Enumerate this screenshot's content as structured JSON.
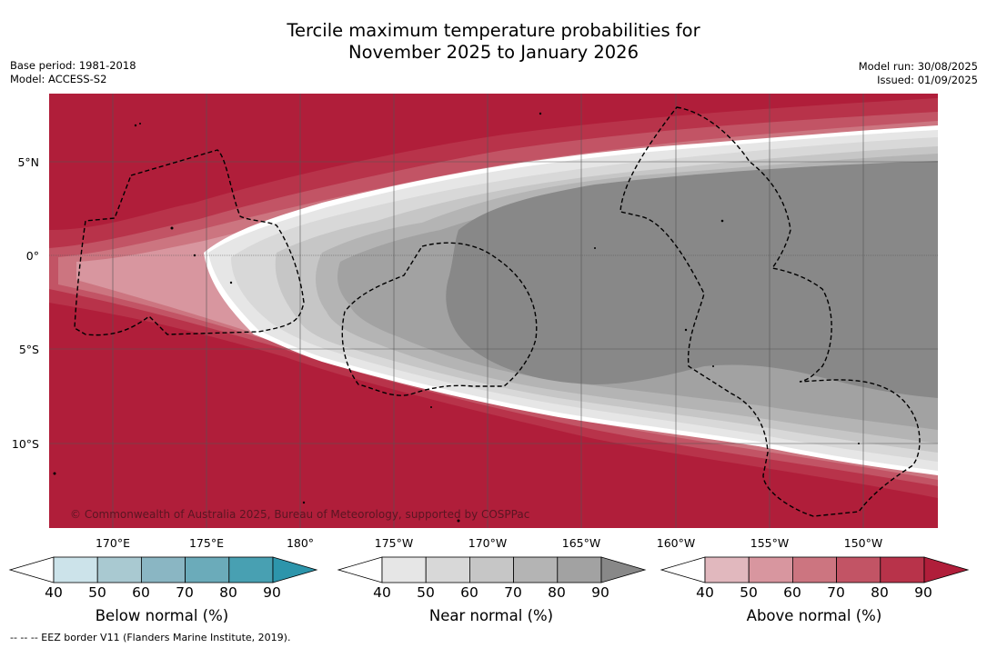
{
  "title_line1": "Tercile maximum temperature probabilities for",
  "title_line2": "November 2025 to January 2026",
  "meta_left": {
    "base_period": "Base period: 1981-2018",
    "model": "Model: ACCESS-S2"
  },
  "meta_right": {
    "model_run": "Model run: 30/08/2025",
    "issued": "Issued: 01/09/2025"
  },
  "latitudes": [
    "5°N",
    "0°",
    "5°S",
    "10°S"
  ],
  "longitudes": [
    "170°E",
    "175°E",
    "180°",
    "175°W",
    "170°W",
    "165°W",
    "160°W",
    "155°W",
    "150°W"
  ],
  "copyright": "© Commonwealth of Australia 2025, Bureau of Meteorology, supported by COSPPac",
  "colorbars": [
    {
      "label": "Below normal (%)",
      "ticks": [
        "40",
        "50",
        "60",
        "70",
        "80",
        "90"
      ],
      "colors": [
        "#cce3ea",
        "#a9c9d1",
        "#8ab6c3",
        "#6babba",
        "#48a0b2",
        "#2d95ab"
      ]
    },
    {
      "label": "Near normal (%)",
      "ticks": [
        "40",
        "50",
        "60",
        "70",
        "80",
        "90"
      ],
      "colors": [
        "#e6e6e6",
        "#d8d8d8",
        "#c6c6c6",
        "#b4b4b4",
        "#a2a2a2",
        "#888888"
      ]
    },
    {
      "label": "Above normal (%)",
      "ticks": [
        "40",
        "50",
        "60",
        "70",
        "80",
        "90"
      ],
      "colors": [
        "#e1b8be",
        "#d8969f",
        "#cc7580",
        "#c25465",
        "#b8334a",
        "#b01e3a"
      ]
    }
  ],
  "footnote": "-- -- -- EEZ border V11 (Flanders Marine Institute, 2019).",
  "map_colors": {
    "above_max": "#b01e3a",
    "near_max": "#888888"
  }
}
